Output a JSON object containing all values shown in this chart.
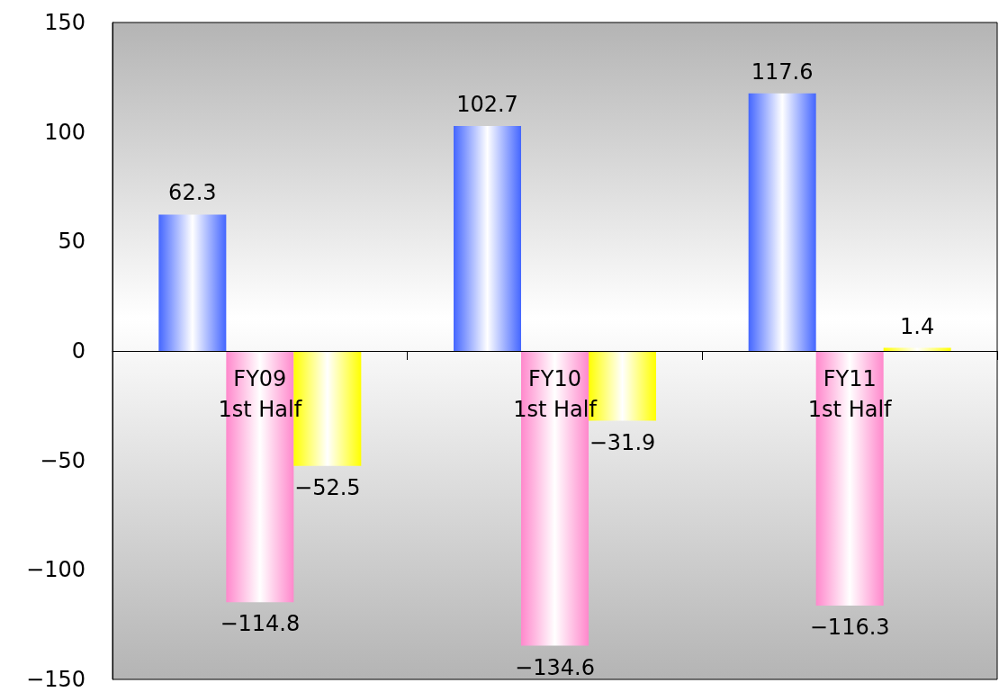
{
  "chart_data": {
    "type": "bar",
    "categories": [
      "FY09\n1st Half",
      "FY10\n1st Half",
      "FY11\n1st Half"
    ],
    "series": [
      {
        "color": "#4466ff",
        "values": [
          62.3,
          102.7,
          117.6
        ],
        "value_labels": [
          "62.3",
          "102.7",
          "117.6"
        ]
      },
      {
        "color": "#ff88cc",
        "values": [
          -114.8,
          -134.6,
          -116.3
        ],
        "value_labels": [
          "−114.8",
          "−134.6",
          "−116.3"
        ]
      },
      {
        "color": "#ffff00",
        "values": [
          -52.5,
          -31.9,
          1.4
        ],
        "value_labels": [
          "−52.5",
          "−31.9",
          "1.4"
        ]
      }
    ],
    "ylim": [
      -150,
      150
    ],
    "yticks": [
      -150,
      -100,
      -50,
      0,
      50,
      100,
      150
    ]
  }
}
